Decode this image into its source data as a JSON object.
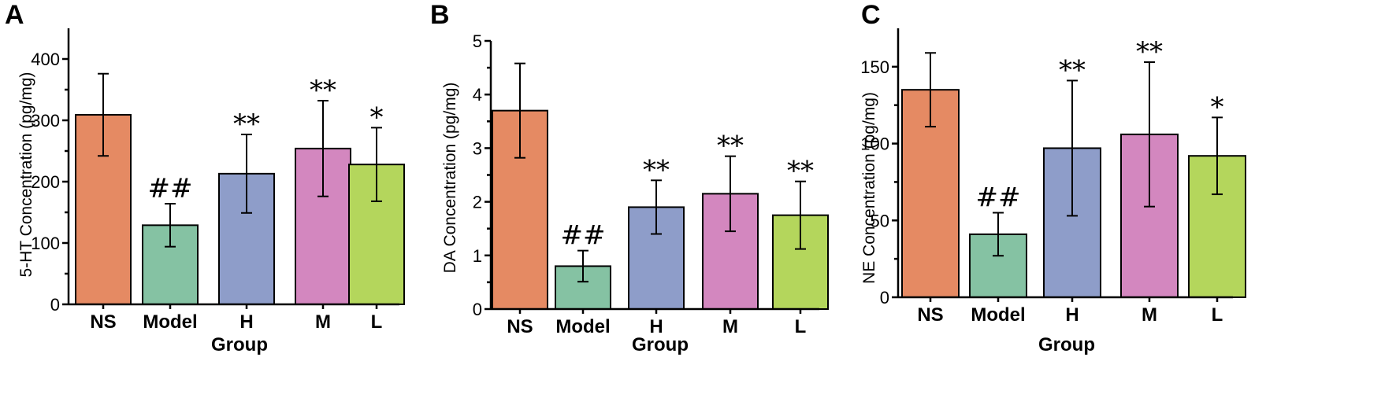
{
  "chart_data": [
    {
      "panel": "A",
      "type": "bar",
      "xlabel": "Group",
      "ylabel": "5-HT Concentration (pg/mg)",
      "categories": [
        "NS",
        "Model",
        "H",
        "M",
        "L"
      ],
      "values": [
        309,
        129,
        213,
        254,
        228
      ],
      "errors": [
        67,
        35,
        64,
        78,
        60
      ],
      "significance": [
        "",
        "##",
        "**",
        "**",
        "*"
      ],
      "ylim": [
        0,
        450
      ],
      "yticks": [
        0,
        100,
        200,
        300,
        400
      ],
      "colors": [
        "#e58a63",
        "#85c2a3",
        "#8e9dc9",
        "#d387bf",
        "#b4d65c"
      ]
    },
    {
      "panel": "B",
      "type": "bar",
      "xlabel": "Group",
      "ylabel": "DA Concentration (pg/mg)",
      "categories": [
        "NS",
        "Model",
        "H",
        "M",
        "L"
      ],
      "values": [
        3.7,
        0.8,
        1.9,
        2.15,
        1.75
      ],
      "errors": [
        0.88,
        0.29,
        0.5,
        0.7,
        0.63
      ],
      "significance": [
        "",
        "##",
        "**",
        "**",
        "**"
      ],
      "ylim": [
        0,
        5
      ],
      "yticks": [
        0,
        1,
        2,
        3,
        4,
        5
      ],
      "colors": [
        "#e58a63",
        "#85c2a3",
        "#8e9dc9",
        "#d387bf",
        "#b4d65c"
      ]
    },
    {
      "panel": "C",
      "type": "bar",
      "xlabel": "Group",
      "ylabel": "NE Concentration (pg/mg)",
      "categories": [
        "NS",
        "Model",
        "H",
        "M",
        "L"
      ],
      "values": [
        135,
        41,
        97,
        106,
        92
      ],
      "errors": [
        24,
        14,
        44,
        47,
        25
      ],
      "significance": [
        "",
        "##",
        "**",
        "**",
        "*"
      ],
      "ylim": [
        0,
        175
      ],
      "yticks": [
        0,
        50,
        100,
        150
      ],
      "colors": [
        "#e58a63",
        "#85c2a3",
        "#8e9dc9",
        "#d387bf",
        "#b4d65c"
      ]
    }
  ]
}
